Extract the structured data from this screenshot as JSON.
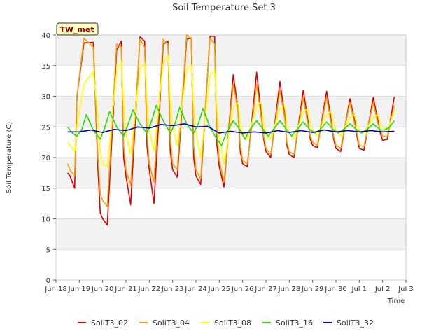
{
  "chart_data": {
    "type": "line",
    "title": "Soil Temperature Set 3",
    "xlabel": "Time",
    "ylabel": "Soil Temperature (C)",
    "badge": "TW_met",
    "ylim": [
      0,
      40
    ],
    "yticks": [
      0,
      5,
      10,
      15,
      20,
      25,
      30,
      35,
      40
    ],
    "xlim": [
      0,
      15
    ],
    "xticks": [
      {
        "x": 0,
        "label": "Jun 18"
      },
      {
        "x": 1,
        "label": "Jun 19"
      },
      {
        "x": 2,
        "label": "Jun 20"
      },
      {
        "x": 3,
        "label": "Jun 21"
      },
      {
        "x": 4,
        "label": "Jun 22"
      },
      {
        "x": 5,
        "label": "Jun 23"
      },
      {
        "x": 6,
        "label": "Jun 24"
      },
      {
        "x": 7,
        "label": "Jun 25"
      },
      {
        "x": 8,
        "label": "Jun 26"
      },
      {
        "x": 9,
        "label": "Jun 27"
      },
      {
        "x": 10,
        "label": "Jun 28"
      },
      {
        "x": 11,
        "label": "Jun 29"
      },
      {
        "x": 12,
        "label": "Jun 30"
      },
      {
        "x": 13,
        "label": "Jul 1"
      },
      {
        "x": 14,
        "label": "Jul 2"
      },
      {
        "x": 15,
        "label": "Jul 3"
      }
    ],
    "grid": true,
    "legend": "bottom",
    "series": [
      {
        "name": "SoilT3_02",
        "color": "#dd0000",
        "x": [
          0.5,
          0.6,
          0.8,
          0.9,
          1.2,
          1.6,
          1.8,
          1.9,
          2.0,
          2.2,
          2.6,
          2.8,
          2.9,
          3.0,
          3.2,
          3.6,
          3.8,
          3.9,
          4.0,
          4.2,
          4.6,
          4.8,
          4.9,
          5.0,
          5.2,
          5.6,
          5.8,
          5.9,
          6.0,
          6.2,
          6.6,
          6.8,
          6.9,
          7.0,
          7.2,
          7.6,
          7.8,
          7.9,
          8.0,
          8.2,
          8.6,
          8.8,
          8.9,
          9.0,
          9.2,
          9.6,
          9.8,
          9.9,
          10.0,
          10.2,
          10.6,
          10.8,
          10.9,
          11.0,
          11.2,
          11.6,
          11.8,
          11.9,
          12.0,
          12.2,
          12.6,
          12.8,
          12.9,
          13.0,
          13.2,
          13.6,
          13.8,
          13.9,
          14.0,
          14.2,
          14.5
        ],
        "y": [
          17.5,
          17.0,
          15.0,
          30.0,
          38.7,
          38.8,
          18.0,
          11.0,
          10.0,
          9.0,
          37.5,
          39.0,
          20.0,
          17.0,
          12.3,
          39.7,
          39.0,
          22.0,
          18.0,
          12.5,
          38.5,
          39.0,
          21.0,
          18.0,
          16.8,
          39.3,
          39.5,
          20.0,
          17.0,
          15.6,
          39.8,
          39.8,
          22.0,
          18.5,
          15.2,
          33.5,
          28.0,
          21.0,
          19.0,
          18.5,
          33.9,
          27.0,
          23.0,
          21.0,
          20.0,
          32.4,
          27.0,
          22.0,
          20.5,
          20.0,
          31.0,
          26.0,
          23.0,
          22.0,
          21.6,
          30.8,
          26.0,
          23.0,
          21.5,
          21.0,
          29.6,
          26.0,
          23.5,
          21.5,
          21.2,
          29.8,
          26.0,
          24.0,
          22.8,
          23.0,
          29.9
        ]
      },
      {
        "name": "SoilT3_04",
        "color": "#f0a000",
        "x": [
          0.5,
          0.6,
          0.8,
          0.9,
          1.2,
          1.6,
          1.8,
          1.9,
          2.0,
          2.2,
          2.6,
          2.8,
          2.9,
          3.0,
          3.2,
          3.6,
          3.8,
          3.9,
          4.0,
          4.2,
          4.6,
          4.8,
          4.9,
          5.0,
          5.2,
          5.6,
          5.8,
          5.9,
          6.0,
          6.2,
          6.6,
          6.8,
          6.9,
          7.0,
          7.2,
          7.6,
          7.8,
          7.9,
          8.0,
          8.2,
          8.6,
          8.8,
          8.9,
          9.0,
          9.2,
          9.6,
          9.8,
          9.9,
          10.0,
          10.2,
          10.6,
          10.8,
          10.9,
          11.0,
          11.2,
          11.6,
          11.8,
          11.9,
          12.0,
          12.2,
          12.6,
          12.8,
          12.9,
          13.0,
          13.2,
          13.6,
          13.8,
          13.9,
          14.0,
          14.2,
          14.5
        ],
        "y": [
          19.0,
          18.0,
          17.0,
          30.0,
          39.5,
          38.0,
          20.0,
          14.0,
          13.0,
          12.0,
          38.5,
          38.0,
          22.0,
          18.0,
          15.5,
          39.3,
          38.0,
          24.0,
          19.0,
          16.0,
          39.3,
          38.5,
          23.0,
          19.0,
          18.0,
          40.0,
          39.5,
          22.0,
          18.0,
          16.5,
          39.5,
          38.5,
          24.0,
          19.5,
          16.0,
          32.0,
          27.5,
          22.0,
          19.5,
          19.0,
          32.0,
          26.5,
          23.5,
          21.5,
          20.5,
          31.0,
          26.5,
          22.5,
          21.0,
          20.5,
          29.8,
          25.5,
          23.5,
          22.5,
          22.0,
          29.8,
          25.5,
          23.5,
          22.0,
          21.5,
          29.0,
          25.5,
          24.0,
          22.0,
          21.8,
          29.0,
          25.5,
          24.5,
          23.5,
          23.5,
          28.5
        ]
      },
      {
        "name": "SoilT3_08",
        "color": "#ffff00",
        "x": [
          0.5,
          0.6,
          0.8,
          0.9,
          1.2,
          1.6,
          1.8,
          1.9,
          2.0,
          2.2,
          2.6,
          2.8,
          2.9,
          3.0,
          3.2,
          3.6,
          3.8,
          3.9,
          4.0,
          4.2,
          4.6,
          4.8,
          4.9,
          5.0,
          5.2,
          5.6,
          5.8,
          5.9,
          6.0,
          6.2,
          6.6,
          6.8,
          6.9,
          7.0,
          7.2,
          7.6,
          7.8,
          7.9,
          8.0,
          8.2,
          8.6,
          8.8,
          8.9,
          9.0,
          9.2,
          9.6,
          9.8,
          9.9,
          10.0,
          10.2,
          10.6,
          10.8,
          10.9,
          11.0,
          11.2,
          11.6,
          11.8,
          11.9,
          12.0,
          12.2,
          12.6,
          12.8,
          12.9,
          13.0,
          13.2,
          13.6,
          13.8,
          13.9,
          14.0,
          14.2,
          14.5
        ],
        "y": [
          22.5,
          22.0,
          21.0,
          25.0,
          32.0,
          34.0,
          27.0,
          21.0,
          19.0,
          18.5,
          34.0,
          35.7,
          29.0,
          24.0,
          20.5,
          34.5,
          35.5,
          29.5,
          24.5,
          21.0,
          35.5,
          36.8,
          29.5,
          25.0,
          22.0,
          34.5,
          35.0,
          28.5,
          24.0,
          20.0,
          33.5,
          34.2,
          28.0,
          23.5,
          19.0,
          28.0,
          29.0,
          25.5,
          23.5,
          23.0,
          28.5,
          29.0,
          25.5,
          23.5,
          23.0,
          28.0,
          28.5,
          25.5,
          24.0,
          23.0,
          27.5,
          28.0,
          25.5,
          24.5,
          23.5,
          27.0,
          27.5,
          25.5,
          24.5,
          23.5,
          26.5,
          27.0,
          25.5,
          24.5,
          24.0,
          26.5,
          27.0,
          25.5,
          25.0,
          24.5,
          27.5
        ]
      },
      {
        "name": "SoilT3_16",
        "color": "#22dd00",
        "x": [
          0.5,
          0.7,
          0.9,
          1.1,
          1.3,
          1.6,
          1.9,
          2.1,
          2.3,
          2.6,
          2.9,
          3.1,
          3.3,
          3.6,
          3.9,
          4.1,
          4.3,
          4.6,
          4.9,
          5.1,
          5.3,
          5.6,
          5.9,
          6.1,
          6.3,
          6.6,
          6.9,
          7.1,
          7.3,
          7.6,
          7.9,
          8.1,
          8.3,
          8.6,
          8.9,
          9.1,
          9.3,
          9.6,
          9.9,
          10.1,
          10.3,
          10.6,
          10.9,
          11.1,
          11.3,
          11.6,
          11.9,
          12.1,
          12.3,
          12.6,
          12.9,
          13.1,
          13.3,
          13.6,
          13.9,
          14.1,
          14.3,
          14.5
        ],
        "y": [
          25.0,
          24.0,
          23.5,
          24.5,
          27.0,
          24.5,
          23.0,
          25.0,
          27.5,
          25.0,
          23.5,
          25.5,
          27.8,
          25.5,
          24.0,
          26.0,
          28.5,
          26.0,
          24.0,
          25.5,
          28.2,
          25.5,
          24.0,
          25.5,
          28.0,
          25.0,
          23.0,
          22.0,
          24.0,
          26.0,
          24.5,
          23.0,
          24.5,
          26.0,
          24.5,
          23.5,
          24.5,
          26.0,
          24.5,
          23.5,
          24.5,
          25.8,
          24.5,
          24.0,
          24.5,
          25.8,
          24.5,
          24.0,
          24.5,
          25.5,
          24.5,
          24.0,
          24.5,
          25.5,
          24.5,
          24.5,
          25.0,
          26.0
        ]
      },
      {
        "name": "SoilT3_32",
        "color": "#0000bb",
        "x": [
          0.5,
          1.0,
          1.5,
          2.0,
          2.5,
          3.0,
          3.5,
          4.0,
          4.5,
          5.0,
          5.5,
          6.0,
          6.5,
          7.0,
          7.5,
          8.0,
          8.5,
          9.0,
          9.5,
          10.0,
          10.5,
          11.0,
          11.5,
          12.0,
          12.5,
          13.0,
          13.5,
          14.0,
          14.5
        ],
        "y": [
          24.2,
          24.2,
          24.5,
          24.1,
          24.6,
          24.4,
          25.0,
          24.8,
          25.4,
          25.2,
          25.5,
          25.0,
          25.1,
          24.0,
          24.3,
          24.0,
          24.2,
          24.0,
          24.4,
          24.1,
          24.4,
          24.1,
          24.5,
          24.2,
          24.4,
          24.2,
          24.4,
          24.2,
          24.3
        ]
      }
    ]
  }
}
